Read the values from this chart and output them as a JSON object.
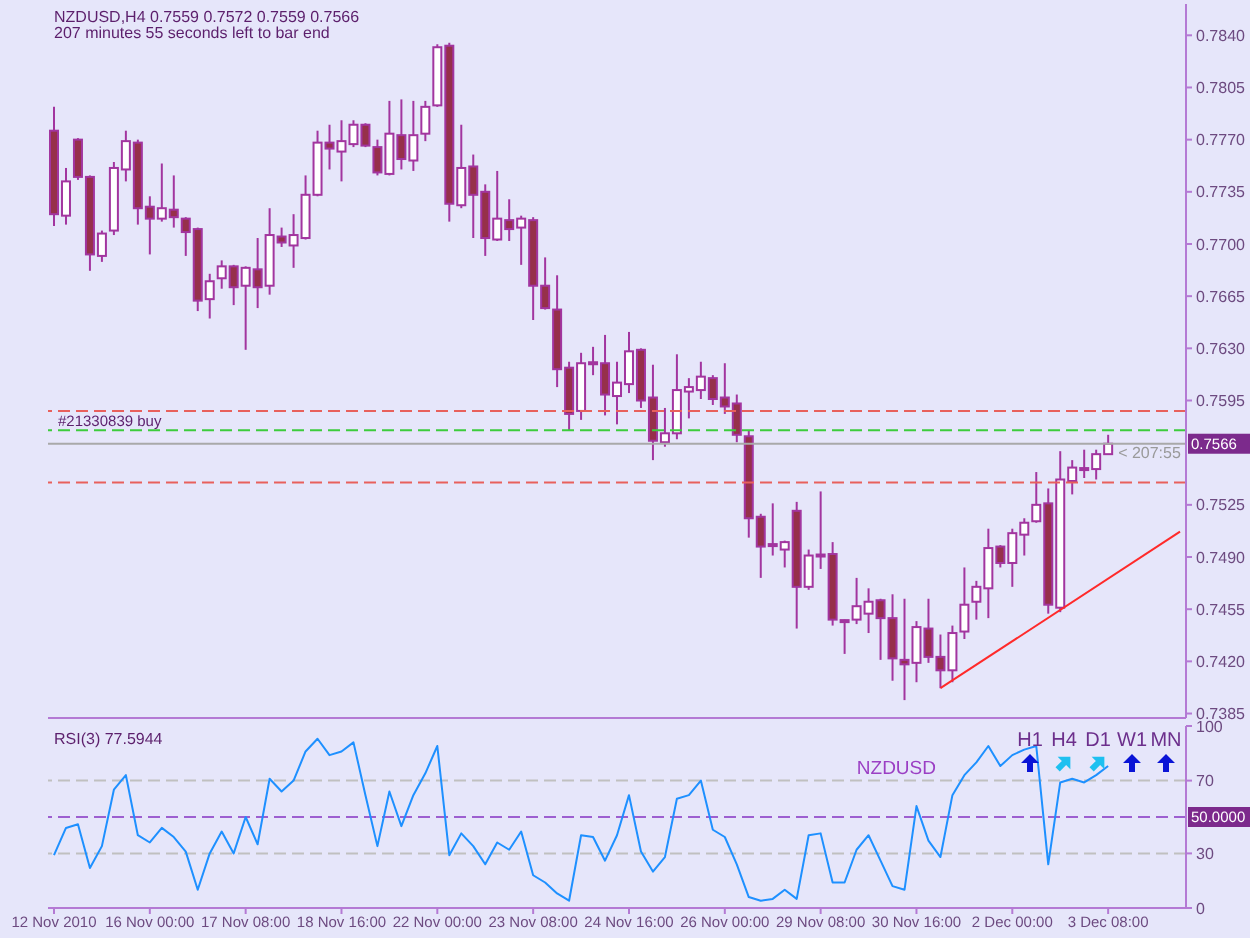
{
  "chart_data": [
    {
      "type": "candlestick",
      "title": "NZDUSD,H4 0.7559 0.7572 0.7559 0.7566",
      "subtitle": "207 minutes 55 seconds left to bar end",
      "categories": [
        "12 Nov 2010",
        null,
        null,
        null,
        null,
        null,
        null,
        null,
        "16 Nov 00:00",
        null,
        null,
        null,
        null,
        null,
        null,
        null,
        "17 Nov 08:00",
        null,
        null,
        null,
        null,
        null,
        null,
        null,
        "18 Nov 16:00",
        null,
        null,
        null,
        null,
        null,
        null,
        null,
        "22 Nov 00:00",
        null,
        null,
        null,
        null,
        null,
        null,
        null,
        "23 Nov 08:00",
        null,
        null,
        null,
        null,
        null,
        null,
        null,
        "24 Nov 16:00",
        null,
        null,
        null,
        null,
        null,
        null,
        null,
        "26 Nov 00:00",
        null,
        null,
        null,
        null,
        null,
        null,
        null,
        "29 Nov 08:00",
        null,
        null,
        null,
        null,
        null,
        null,
        null,
        "30 Nov 16:00",
        null,
        null,
        null,
        null,
        null,
        null,
        null,
        "2 Dec 00:00",
        null,
        null,
        null,
        null,
        null,
        null,
        null,
        "3 Dec 08:00",
        null,
        null,
        null,
        null,
        null,
        null
      ],
      "ohlc": [
        [
          0.7776,
          0.7792,
          0.7712,
          0.772
        ],
        [
          0.7719,
          0.7751,
          0.7713,
          0.7742
        ],
        [
          0.777,
          0.7771,
          0.7743,
          0.7745
        ],
        [
          0.7745,
          0.7746,
          0.7682,
          0.7693
        ],
        [
          0.7692,
          0.7709,
          0.7688,
          0.7707
        ],
        [
          0.7709,
          0.7755,
          0.7706,
          0.7751
        ],
        [
          0.775,
          0.7776,
          0.7742,
          0.7769
        ],
        [
          0.7768,
          0.777,
          0.7713,
          0.7724
        ],
        [
          0.7725,
          0.7732,
          0.7693,
          0.7717
        ],
        [
          0.7717,
          0.7754,
          0.7715,
          0.7724
        ],
        [
          0.7723,
          0.7746,
          0.7711,
          0.7718
        ],
        [
          0.7717,
          0.7718,
          0.7692,
          0.7708
        ],
        [
          0.771,
          0.7711,
          0.7655,
          0.7662
        ],
        [
          0.7663,
          0.768,
          0.765,
          0.7675
        ],
        [
          0.7677,
          0.7689,
          0.767,
          0.7685
        ],
        [
          0.7685,
          0.7686,
          0.7659,
          0.7671
        ],
        [
          0.7672,
          0.7685,
          0.7629,
          0.7684
        ],
        [
          0.7683,
          0.7704,
          0.7657,
          0.7671
        ],
        [
          0.7672,
          0.7724,
          0.7666,
          0.7706
        ],
        [
          0.7705,
          0.7711,
          0.7698,
          0.7701
        ],
        [
          0.7699,
          0.772,
          0.7684,
          0.7706
        ],
        [
          0.7704,
          0.7746,
          0.7703,
          0.7733
        ],
        [
          0.7733,
          0.7776,
          0.7732,
          0.7768
        ],
        [
          0.7768,
          0.778,
          0.775,
          0.7764
        ],
        [
          0.7762,
          0.7783,
          0.7742,
          0.7769
        ],
        [
          0.7767,
          0.7783,
          0.7765,
          0.778
        ],
        [
          0.778,
          0.7781,
          0.7765,
          0.7766
        ],
        [
          0.7765,
          0.777,
          0.7746,
          0.7748
        ],
        [
          0.7747,
          0.7796,
          0.7746,
          0.7774
        ],
        [
          0.7773,
          0.7797,
          0.775,
          0.7757
        ],
        [
          0.7756,
          0.7796,
          0.7749,
          0.7773
        ],
        [
          0.7774,
          0.7796,
          0.7769,
          0.7792
        ],
        [
          0.7793,
          0.7834,
          0.7792,
          0.7832
        ],
        [
          0.7833,
          0.7835,
          0.7715,
          0.7727
        ],
        [
          0.7726,
          0.778,
          0.7724,
          0.7751
        ],
        [
          0.7752,
          0.776,
          0.7704,
          0.7733
        ],
        [
          0.7735,
          0.774,
          0.7692,
          0.7704
        ],
        [
          0.7703,
          0.7749,
          0.7702,
          0.7717
        ],
        [
          0.7716,
          0.773,
          0.7702,
          0.771
        ],
        [
          0.7711,
          0.7719,
          0.7686,
          0.7717
        ],
        [
          0.7716,
          0.7718,
          0.7649,
          0.7672
        ],
        [
          0.7672,
          0.7691,
          0.7656,
          0.7657
        ],
        [
          0.7656,
          0.7679,
          0.7604,
          0.7616
        ],
        [
          0.7617,
          0.7621,
          0.7575,
          0.7586
        ],
        [
          0.7588,
          0.7627,
          0.7582,
          0.762
        ],
        [
          0.762,
          0.7631,
          0.7612,
          0.7619
        ],
        [
          0.762,
          0.7639,
          0.7585,
          0.7599
        ],
        [
          0.7598,
          0.7621,
          0.7579,
          0.7607
        ],
        [
          0.7606,
          0.7641,
          0.76,
          0.7628
        ],
        [
          0.7629,
          0.763,
          0.759,
          0.7595
        ],
        [
          0.7597,
          0.7619,
          0.7555,
          0.7568
        ],
        [
          0.7567,
          0.759,
          0.7564,
          0.7573
        ],
        [
          0.7573,
          0.7626,
          0.7569,
          0.7602
        ],
        [
          0.7601,
          0.761,
          0.7583,
          0.7604
        ],
        [
          0.7602,
          0.7621,
          0.7596,
          0.7611
        ],
        [
          0.761,
          0.7612,
          0.7592,
          0.7596
        ],
        [
          0.7597,
          0.762,
          0.7586,
          0.7591
        ],
        [
          0.7593,
          0.7599,
          0.7567,
          0.7572
        ],
        [
          0.7571,
          0.7575,
          0.7503,
          0.7516
        ],
        [
          0.7517,
          0.7519,
          0.7476,
          0.7497
        ],
        [
          0.7498,
          0.7526,
          0.7491,
          0.7498
        ],
        [
          0.7495,
          0.7501,
          0.7483,
          0.75
        ],
        [
          0.7521,
          0.7527,
          0.7442,
          0.747
        ],
        [
          0.747,
          0.7495,
          0.7468,
          0.7491
        ],
        [
          0.7491,
          0.7534,
          0.7482,
          0.7491
        ],
        [
          0.7492,
          0.75,
          0.7444,
          0.7448
        ],
        [
          0.7447,
          0.7448,
          0.7425,
          0.7447
        ],
        [
          0.7448,
          0.7476,
          0.7445,
          0.7457
        ],
        [
          0.7452,
          0.7469,
          0.7439,
          0.746
        ],
        [
          0.7461,
          0.7462,
          0.7421,
          0.7449
        ],
        [
          0.7449,
          0.7465,
          0.7407,
          0.7422
        ],
        [
          0.7421,
          0.7462,
          0.7394,
          0.7418
        ],
        [
          0.7419,
          0.7447,
          0.7406,
          0.7443
        ],
        [
          0.7442,
          0.7462,
          0.7419,
          0.7423
        ],
        [
          0.7423,
          0.7438,
          0.7402,
          0.7414
        ],
        [
          0.7414,
          0.7444,
          0.7406,
          0.7439
        ],
        [
          0.744,
          0.7483,
          0.7435,
          0.7458
        ],
        [
          0.746,
          0.7474,
          0.7448,
          0.747
        ],
        [
          0.7469,
          0.7509,
          0.7449,
          0.7496
        ],
        [
          0.7497,
          0.7498,
          0.7483,
          0.7486
        ],
        [
          0.7486,
          0.7509,
          0.747,
          0.7506
        ],
        [
          0.7505,
          0.7516,
          0.7491,
          0.7513
        ],
        [
          0.7514,
          0.7547,
          0.7513,
          0.7525
        ],
        [
          0.7526,
          0.7536,
          0.7452,
          0.7458
        ],
        [
          0.7456,
          0.7561,
          0.7453,
          0.7542
        ],
        [
          0.7541,
          0.7555,
          0.7532,
          0.755
        ],
        [
          0.7549,
          0.7562,
          0.7543,
          0.7549
        ],
        [
          0.7549,
          0.7562,
          0.7542,
          0.7559
        ],
        [
          0.7559,
          0.7572,
          0.7559,
          0.7566
        ],
        null,
        null,
        null,
        null,
        null,
        null
      ],
      "color": "#a2359f",
      "colors": [
        "#96304a",
        "#ffffff",
        "#96304a",
        "#96304a",
        "#ffffff",
        "#ffffff",
        "#ffffff",
        "#96304a",
        "#96304a",
        "#ffffff",
        "#96304a",
        "#96304a",
        "#96304a",
        "#ffffff",
        "#ffffff",
        "#96304a",
        "#ffffff",
        "#96304a",
        "#ffffff",
        "#96304a",
        "#ffffff",
        "#ffffff",
        "#ffffff",
        "#96304a",
        "#ffffff",
        "#ffffff",
        "#96304a",
        "#96304a",
        "#ffffff",
        "#96304a",
        "#ffffff",
        "#ffffff",
        "#ffffff",
        "#96304a",
        "#ffffff",
        "#96304a",
        "#96304a",
        "#ffffff",
        "#96304a",
        "#ffffff",
        "#96304a",
        "#96304a",
        "#96304a",
        "#96304a",
        "#ffffff",
        "#96304a",
        "#96304a",
        "#ffffff",
        "#ffffff",
        "#96304a",
        "#96304a",
        "#ffffff",
        "#ffffff",
        "#ffffff",
        "#ffffff",
        "#96304a",
        "#96304a",
        "#96304a",
        "#96304a",
        "#96304a",
        "#ffffff",
        "#ffffff",
        "#96304a",
        "#ffffff",
        "#ffffff",
        "#96304a",
        "#ffffff",
        "#ffffff",
        "#ffffff",
        "#96304a",
        "#96304a",
        "#96304a",
        "#ffffff",
        "#96304a",
        "#96304a",
        "#ffffff",
        "#ffffff",
        "#ffffff",
        "#ffffff",
        "#96304a",
        "#ffffff",
        "#ffffff",
        "#ffffff",
        "#96304a",
        "#ffffff",
        "#ffffff",
        "#ffffff",
        "#ffffff",
        "#ffffff",
        null,
        null,
        null,
        null,
        null,
        null
      ],
      "series": [
        {
          "type": "line",
          "color": "#ff2a2a",
          "values": [
            null,
            null,
            null,
            null,
            null,
            null,
            null,
            null,
            null,
            null,
            null,
            null,
            null,
            null,
            null,
            null,
            null,
            null,
            null,
            null,
            null,
            null,
            null,
            null,
            null,
            null,
            null,
            null,
            null,
            null,
            null,
            null,
            null,
            null,
            null,
            null,
            null,
            null,
            null,
            null,
            null,
            null,
            null,
            null,
            null,
            null,
            null,
            null,
            null,
            null,
            null,
            null,
            null,
            null,
            null,
            null,
            null,
            null,
            null,
            null,
            null,
            null,
            null,
            null,
            null,
            null,
            null,
            null,
            null,
            null,
            null,
            null,
            null,
            null,
            0.7402,
            null,
            null,
            null,
            null,
            null,
            null,
            null,
            null,
            null,
            null,
            null,
            null,
            null,
            null,
            null,
            null,
            null,
            null,
            null,
            0.7507
          ]
        }
      ],
      "ylim": [
        0.7382,
        0.7861
      ],
      "yticks": [
        0.7385,
        {
          "value": 0.742,
          "label": "0.7420"
        },
        0.7455,
        {
          "value": 0.749,
          "label": "0.7490"
        },
        0.7525,
        0.7595,
        {
          "value": 0.763,
          "label": "0.7630"
        },
        0.7665,
        {
          "value": 0.77,
          "label": "0.7700"
        },
        0.7735,
        {
          "value": 0.777,
          "label": "0.7770"
        },
        0.7805,
        {
          "value": 0.784,
          "label": "0.7840"
        }
      ],
      "ref_lines": [
        {
          "axis": "y",
          "value": 0.7588,
          "color": "#e8605c",
          "line_style": "dashed"
        },
        {
          "axis": "y",
          "value": 0.7575,
          "color": "#3ccc3c",
          "line_style": "dashed"
        },
        {
          "axis": "y",
          "value": 0.7566,
          "label": "0.7566",
          "color": "#a9a9a9",
          "line_style": "solid"
        },
        {
          "axis": "y",
          "value": 0.754,
          "color": "#e8605c",
          "line_style": "dashed"
        }
      ],
      "annotations": [
        {
          "text": "#21330839 buy",
          "y": 0.7575
        },
        {
          "text": "< 207:55",
          "x": "3 Dec 08:00",
          "y": 0.7566
        }
      ],
      "tick_labels": "y"
    },
    {
      "type": "line",
      "title": "RSI(3) 77.5944",
      "categories": [
        "12 Nov 2010",
        null,
        null,
        null,
        null,
        null,
        null,
        null,
        "16 Nov 00:00",
        null,
        null,
        null,
        null,
        null,
        null,
        null,
        "17 Nov 08:00",
        null,
        null,
        null,
        null,
        null,
        null,
        null,
        "18 Nov 16:00",
        null,
        null,
        null,
        null,
        null,
        null,
        null,
        "22 Nov 00:00",
        null,
        null,
        null,
        null,
        null,
        null,
        null,
        "23 Nov 08:00",
        null,
        null,
        null,
        null,
        null,
        null,
        null,
        "24 Nov 16:00",
        null,
        null,
        null,
        null,
        null,
        null,
        null,
        "26 Nov 00:00",
        null,
        null,
        null,
        null,
        null,
        null,
        null,
        "29 Nov 08:00",
        null,
        null,
        null,
        null,
        null,
        null,
        null,
        "30 Nov 16:00",
        null,
        null,
        null,
        null,
        null,
        null,
        null,
        "2 Dec 00:00",
        null,
        null,
        null,
        null,
        null,
        null,
        null,
        "3 Dec 08:00",
        null,
        null,
        null,
        null,
        null,
        null
      ],
      "series": [
        {
          "color": "#1e90ff",
          "values": [
            29,
            44,
            46,
            22,
            34,
            65,
            73,
            40,
            36,
            44,
            39,
            31,
            10,
            30,
            42,
            30,
            50,
            35,
            71,
            64,
            70,
            86,
            93,
            84,
            86,
            91,
            62,
            34,
            64,
            45,
            62,
            74,
            89,
            29,
            41,
            34,
            24,
            36,
            32,
            42,
            18,
            14,
            8,
            4,
            40,
            39,
            26,
            40,
            62,
            31,
            20,
            28,
            60,
            62,
            70,
            43,
            39,
            24,
            6,
            4,
            5,
            10,
            5,
            40,
            41,
            14,
            14,
            32,
            40,
            26,
            12,
            10,
            56,
            37,
            28,
            62,
            73,
            80,
            89,
            78,
            84,
            87,
            89,
            24,
            69,
            71,
            69,
            73,
            78,
            null,
            null,
            null,
            null,
            null,
            null
          ]
        }
      ],
      "ylim": [
        0,
        100
      ],
      "yticks": [
        0,
        30,
        70,
        100
      ],
      "ref_lines": [
        {
          "axis": "y",
          "value": 70,
          "color": "#c0c0c0",
          "line_style": "dashed"
        },
        {
          "axis": "y",
          "value": 50,
          "label": "50.0000",
          "color": "#9d5fd0",
          "line_style": "dashed"
        },
        {
          "axis": "y",
          "value": 30,
          "color": "#c0c0c0",
          "line_style": "dashed"
        }
      ],
      "annotations": [
        "NZDUSD",
        "H1",
        "H4",
        "D1",
        "W1",
        "MN"
      ]
    }
  ]
}
